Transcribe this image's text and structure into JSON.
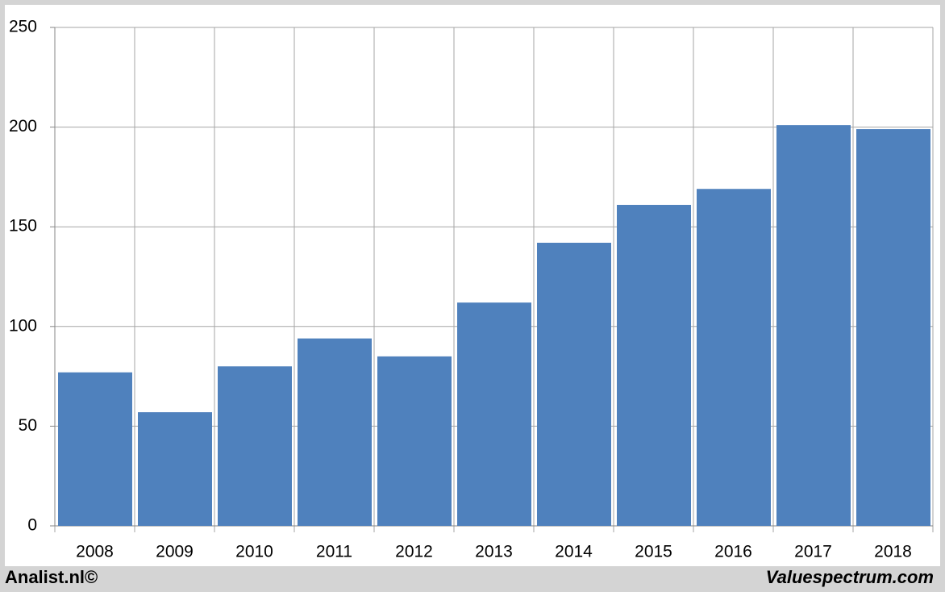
{
  "chart_data": {
    "type": "bar",
    "categories": [
      "2008",
      "2009",
      "2010",
      "2011",
      "2012",
      "2013",
      "2014",
      "2015",
      "2016",
      "2017",
      "2018"
    ],
    "values": [
      77,
      57,
      80,
      94,
      85,
      112,
      142,
      161,
      169,
      201,
      199
    ],
    "color": "#4f81bd",
    "ylim": [
      0,
      250
    ],
    "yticks": [
      0,
      50,
      100,
      150,
      200,
      250
    ],
    "grid": true
  },
  "footer": {
    "left": "Analist.nl©",
    "right": "Valuespectrum.com"
  }
}
